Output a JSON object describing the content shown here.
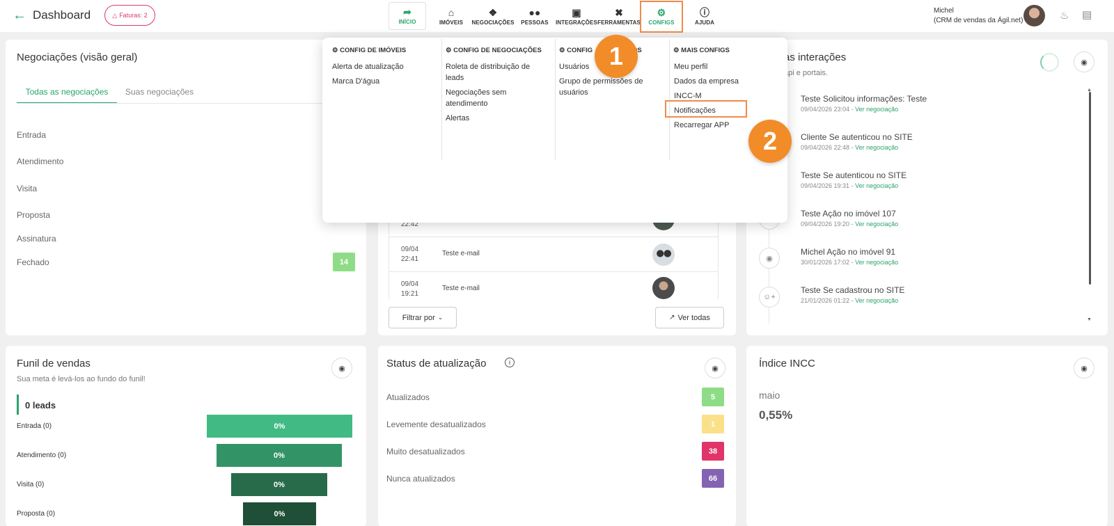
{
  "header": {
    "back_title": "Dashboard",
    "faturas_label": "Faturas: 2",
    "nav": [
      {
        "label": "INÍCIO",
        "icon": "home-brand-icon"
      },
      {
        "label": "IMÓVEIS",
        "icon": "house-icon"
      },
      {
        "label": "NEGOCIAÇÕES",
        "icon": "handshake-icon"
      },
      {
        "label": "PESSOAS",
        "icon": "people-icon"
      },
      {
        "label": "INTEGRAÇÕES",
        "icon": "integration-icon"
      },
      {
        "label": "FERRAMENTAS",
        "icon": "tools-icon"
      },
      {
        "label": "CONFIGS",
        "icon": "gear-icon"
      },
      {
        "label": "AJUDA",
        "icon": "help-icon"
      }
    ],
    "user_name": "Michel",
    "user_subtitle": "(CRM de vendas da Ágil.net)"
  },
  "negociacoes": {
    "title": "Negociações (visão geral)",
    "tab_all": "Todas as negociações",
    "tab_mine": "Suas negociações",
    "stages": [
      "Entrada",
      "Atendimento",
      "Visita",
      "Proposta",
      "Assinatura",
      "Fechado"
    ],
    "fechado_count": "14"
  },
  "middle_list": {
    "rows": [
      {
        "date": "",
        "time": "22:42",
        "desc": ""
      },
      {
        "date": "09/04",
        "time": "22:41",
        "desc": "Teste e-mail"
      },
      {
        "date": "09/04",
        "time": "19:21",
        "desc": "Teste e-mail"
      }
    ],
    "filter_label": "Filtrar por",
    "see_all_label": "Ver todas"
  },
  "interactions": {
    "title_partial": "as interações",
    "subtitle_partial": "api e portais.",
    "items": [
      {
        "title": "Teste Solicitou informações: Teste",
        "date": "09/04/2026 23:04",
        "link": "Ver negociação"
      },
      {
        "title": "Cliente Se autenticou no SITE",
        "date": "09/04/2026 22:48",
        "link": "Ver negociação"
      },
      {
        "title": "Teste Se autenticou no SITE",
        "date": "09/04/2026 19:31",
        "link": "Ver negociação"
      },
      {
        "title": "Teste Ação no imóvel 107",
        "date": "09/04/2026 19:20",
        "link": "Ver negociação"
      },
      {
        "title": "Michel Ação no imóvel 91",
        "date": "30/01/2026 17:02",
        "link": "Ver negociação"
      },
      {
        "title": "Teste Se cadastrou no SITE",
        "date": "21/01/2026 01:22",
        "link": "Ver negociação"
      }
    ],
    "separator": "-"
  },
  "funil": {
    "title": "Funil de vendas",
    "subtitle": "Sua meta é levá-los ao fundo do funil!",
    "leads": "0 leads",
    "stages": [
      {
        "label": "Entrada (0)",
        "value": "0%",
        "color": "#41ba84"
      },
      {
        "label": "Atendimento (0)",
        "value": "0%",
        "color": "#329466"
      },
      {
        "label": "Visita (0)",
        "value": "0%",
        "color": "#286b4a"
      },
      {
        "label": "Proposta (0)",
        "value": "0%",
        "color": "#1f4f37"
      }
    ]
  },
  "status": {
    "title": "Status de atualização",
    "rows": [
      {
        "label": "Atualizados",
        "count": "5",
        "color": "#8fdc86"
      },
      {
        "label": "Levemente desatualizados",
        "count": "1",
        "color": "#fbe08a"
      },
      {
        "label": "Muito desatualizados",
        "count": "38",
        "color": "#e0346b"
      },
      {
        "label": "Nunca atualizados",
        "count": "66",
        "color": "#8463b3"
      }
    ]
  },
  "incc": {
    "title": "Índice INCC",
    "month": "maio",
    "value": "0,55%"
  },
  "configs_menu": {
    "col1": {
      "heading": "CONFIG DE IMÓVEIS",
      "items": [
        "Alerta de atualização",
        "Marca D'água"
      ]
    },
    "col2": {
      "heading": "CONFIG DE NEGOCIAÇÕES",
      "items": [
        "Roleta de distribuição de leads",
        "Negociações sem atendimento",
        "Alertas"
      ]
    },
    "col3": {
      "heading_start": "CONFIG",
      "heading_end": "OS",
      "items": [
        "Usuários",
        "Grupo de permissões de usuários"
      ]
    },
    "col4": {
      "heading": "MAIS CONFIGS",
      "items": [
        "Meu perfil",
        "Dados da empresa",
        "INCC-M",
        "Notificações",
        "Recarregar APP"
      ]
    }
  },
  "steps": [
    "1",
    "2"
  ],
  "colors": {
    "brand": "#2aa36b",
    "highlight": "#f08a4b",
    "step": "#f28c28"
  }
}
